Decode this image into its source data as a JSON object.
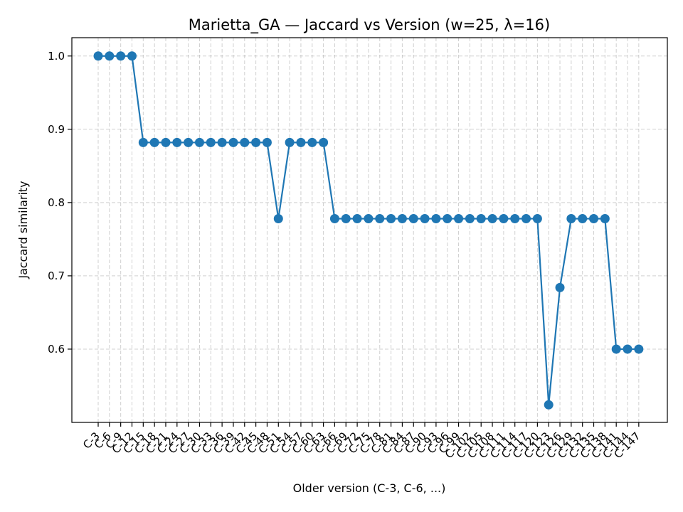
{
  "chart_data": {
    "type": "line",
    "title": "Marietta_GA — Jaccard vs Version (w=25, λ=16)",
    "xlabel": "Older version (C-3, C-6, ...)",
    "ylabel": "Jaccard similarity",
    "categories": [
      "C-3",
      "C-6",
      "C-9",
      "C-12",
      "C-15",
      "C-18",
      "C-21",
      "C-24",
      "C-27",
      "C-30",
      "C-33",
      "C-36",
      "C-39",
      "C-42",
      "C-45",
      "C-48",
      "C-51",
      "C-54",
      "C-57",
      "C-60",
      "C-63",
      "C-66",
      "C-69",
      "C-72",
      "C-75",
      "C-78",
      "C-81",
      "C-84",
      "C-87",
      "C-90",
      "C-93",
      "C-96",
      "C-99",
      "C-102",
      "C-105",
      "C-108",
      "C-111",
      "C-114",
      "C-117",
      "C-120",
      "C-123",
      "C-126",
      "C-129",
      "C-132",
      "C-135",
      "C-138",
      "C-141",
      "C-144",
      "C-147"
    ],
    "series": [
      {
        "values": [
          1.0,
          1.0,
          1.0,
          1.0,
          0.882,
          0.882,
          0.882,
          0.882,
          0.882,
          0.882,
          0.882,
          0.882,
          0.882,
          0.882,
          0.882,
          0.882,
          0.778,
          0.882,
          0.882,
          0.882,
          0.882,
          0.778,
          0.778,
          0.778,
          0.778,
          0.778,
          0.778,
          0.778,
          0.778,
          0.778,
          0.778,
          0.778,
          0.778,
          0.778,
          0.778,
          0.778,
          0.778,
          0.778,
          0.778,
          0.778,
          0.524,
          0.684,
          0.778,
          0.778,
          0.778,
          0.778,
          0.6,
          0.6,
          0.6
        ],
        "color": "#1f77b4"
      }
    ],
    "yticks": [
      0.6,
      0.7,
      0.8,
      0.9,
      1.0
    ],
    "ylim": [
      0.5,
      1.025
    ],
    "grid": true,
    "marker": "circle"
  }
}
